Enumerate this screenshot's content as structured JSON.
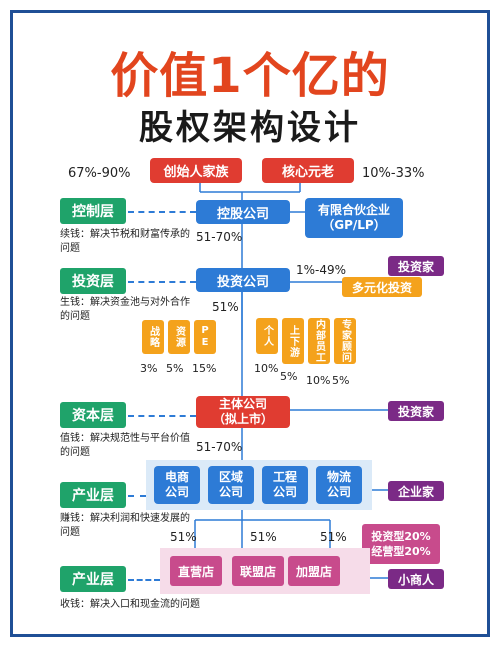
{
  "title": {
    "line1": "价值1个亿的",
    "line2": "股权架构设计"
  },
  "top": {
    "founder": "创始人家族",
    "founder_pct": "67%-90%",
    "core": "核心元老",
    "core_pct": "10%-33%"
  },
  "layers": {
    "control": {
      "label": "控制层",
      "desc": "续钱：解决节税和财富传承的问题"
    },
    "invest": {
      "label": "投资层",
      "desc": "生钱：解决资金池与对外合作的问题"
    },
    "capital": {
      "label": "资本层",
      "desc": "值钱：解决规范性与平台价值的问题"
    },
    "industry1": {
      "label": "产业层",
      "desc": "赚钱：解决利润和快速发展的问题"
    },
    "industry2": {
      "label": "产业层",
      "desc": "收钱：解决入口和现金流的问题"
    }
  },
  "nodes": {
    "holding": "控股公司",
    "gp": "有限合伙企业（GP/LP）",
    "pct_51_70_a": "51-70%",
    "investco": "投资公司",
    "pct_1_49": "1%-49%",
    "investor_a": "投资家",
    "diversified": "多元化投资",
    "pct_51": "51%",
    "main": "主体公司（拟上市）",
    "investor_b": "投资家",
    "pct_51_70_b": "51-70%",
    "entrepreneur": "企业家",
    "merchant": "小商人"
  },
  "orange_left": [
    {
      "label": "战略",
      "pct": "3%"
    },
    {
      "label": "资源",
      "pct": "5%"
    },
    {
      "label": "PE",
      "pct": "15%"
    }
  ],
  "orange_right": [
    {
      "label": "个人",
      "pct": "10%"
    },
    {
      "label": "上下游",
      "pct": "5%"
    },
    {
      "label": "内部员工",
      "pct": "10%"
    },
    {
      "label": "专家顾问",
      "pct": "5%"
    }
  ],
  "subsidiaries": [
    "电商公司",
    "区域公司",
    "工程公司",
    "物流公司"
  ],
  "stores": [
    "直营店",
    "联盟店",
    "加盟店"
  ],
  "store_pcts": [
    "51%",
    "51%",
    "51%"
  ],
  "store_types": {
    "line1": "投资型20%",
    "line2": "经营型20%"
  },
  "colors": {
    "title_red": "#e2451e",
    "green": "#1fa36a",
    "blue": "#2d7bd6",
    "red": "#e03c31",
    "orange": "#f4a21c",
    "purple": "#7b2a86",
    "pink": "#c84b8c",
    "frame": "#1f4f96"
  }
}
